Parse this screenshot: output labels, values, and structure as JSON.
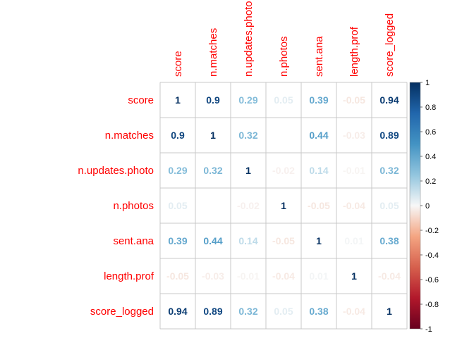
{
  "chart_data": {
    "type": "heatmap",
    "variables": [
      "score",
      "n.matches",
      "n.updates.photo",
      "n.photos",
      "sent.ana",
      "length.prof",
      "score_logged"
    ],
    "matrix": [
      [
        1,
        0.9,
        0.29,
        0.05,
        0.39,
        -0.05,
        0.94
      ],
      [
        0.9,
        1,
        0.32,
        null,
        0.44,
        -0.03,
        0.89
      ],
      [
        0.29,
        0.32,
        1,
        -0.02,
        0.14,
        -0.01,
        0.32
      ],
      [
        0.05,
        null,
        -0.02,
        1,
        -0.05,
        -0.04,
        0.05
      ],
      [
        0.39,
        0.44,
        0.14,
        -0.05,
        1,
        0.01,
        0.38
      ],
      [
        -0.05,
        -0.03,
        -0.01,
        -0.04,
        0.01,
        1,
        -0.04
      ],
      [
        0.94,
        0.89,
        0.32,
        0.05,
        0.38,
        -0.04,
        1
      ]
    ],
    "labels": [
      [
        "1",
        "0.9",
        "0.29",
        "0.05",
        "0.39",
        "-0.05",
        "0.94"
      ],
      [
        "0.9",
        "1",
        "0.32",
        "",
        "0.44",
        "-0.03",
        "0.89"
      ],
      [
        "0.29",
        "0.32",
        "1",
        "-0.02",
        "0.14",
        "-0.01",
        "0.32"
      ],
      [
        "0.05",
        "",
        "-0.02",
        "1",
        "-0.05",
        "-0.04",
        "0.05"
      ],
      [
        "0.39",
        "0.44",
        "0.14",
        "-0.05",
        "1",
        "0.01",
        "0.38"
      ],
      [
        "-0.05",
        "-0.03",
        "-0.01",
        "-0.04",
        "0.01",
        "1",
        "-0.04"
      ],
      [
        "0.94",
        "0.89",
        "0.32",
        "0.05",
        "0.38",
        "-0.04",
        "1"
      ]
    ],
    "color_scale": {
      "min": -1,
      "max": 1,
      "ticks": [
        "1",
        "0.8",
        "0.6",
        "0.4",
        "0.2",
        "0",
        "-0.2",
        "-0.4",
        "-0.6",
        "-0.8",
        "-1"
      ],
      "stops": [
        {
          "v": -1,
          "c": "#67001f"
        },
        {
          "v": -0.75,
          "c": "#b2182b"
        },
        {
          "v": -0.5,
          "c": "#d6604d"
        },
        {
          "v": -0.25,
          "c": "#f4a582"
        },
        {
          "v": 0,
          "c": "#f7f7f7"
        },
        {
          "v": 0.25,
          "c": "#92c5de"
        },
        {
          "v": 0.5,
          "c": "#4393c3"
        },
        {
          "v": 0.75,
          "c": "#2166ac"
        },
        {
          "v": 1,
          "c": "#053061"
        }
      ]
    },
    "label_color": "#ff0000",
    "grid_color": "#c8c8c8"
  }
}
